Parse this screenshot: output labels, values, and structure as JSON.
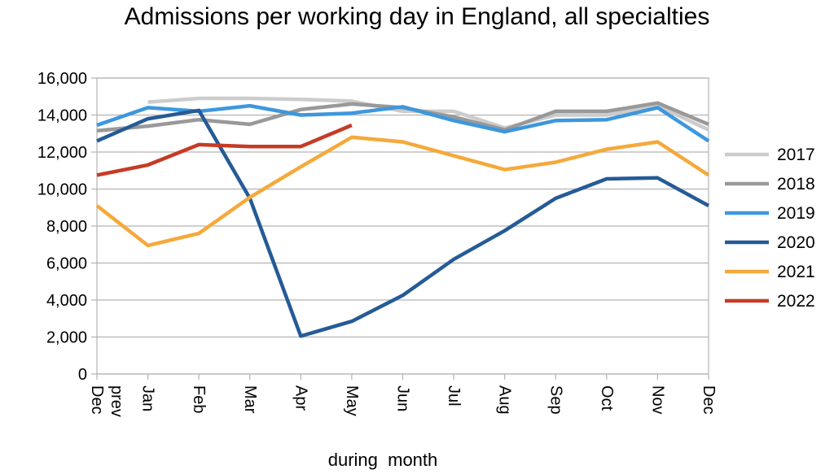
{
  "chart_data": {
    "type": "line",
    "title": "Admissions per working day in England, all specialties",
    "xlabel": "during  month",
    "ylabel": "",
    "ylim": [
      0,
      16000
    ],
    "yticks": [
      0,
      2000,
      4000,
      6000,
      8000,
      10000,
      12000,
      14000,
      16000
    ],
    "ytick_labels": [
      "0",
      "2,000",
      "4,000",
      "6,000",
      "8,000",
      "10,000",
      "12,000",
      "14,000",
      "16,000"
    ],
    "categories": [
      "Dec prev",
      "Jan",
      "Feb",
      "Mar",
      "Apr",
      "May",
      "Jun",
      "Jul",
      "Aug",
      "Sep",
      "Oct",
      "Nov",
      "Dec"
    ],
    "grid": true,
    "legend_position": "right",
    "series": [
      {
        "name": "2017",
        "color": "#cccccc",
        "values": [
          null,
          14700,
          14900,
          14900,
          14850,
          14750,
          14200,
          14200,
          13300,
          14000,
          14000,
          14500,
          13200
        ]
      },
      {
        "name": "2018",
        "color": "#999999",
        "values": [
          13150,
          13400,
          13750,
          13500,
          14300,
          14600,
          14400,
          13900,
          13200,
          14200,
          14200,
          14650,
          13500
        ]
      },
      {
        "name": "2019",
        "color": "#3d97dd",
        "values": [
          13450,
          14400,
          14200,
          14500,
          14000,
          14100,
          14450,
          13700,
          13100,
          13700,
          13750,
          14400,
          12600
        ]
      },
      {
        "name": "2020",
        "color": "#255b96",
        "values": [
          12600,
          13800,
          14250,
          9500,
          2050,
          2850,
          4250,
          6200,
          7750,
          9500,
          10550,
          10600,
          9100
        ]
      },
      {
        "name": "2021",
        "color": "#f5a93b",
        "values": [
          9100,
          6950,
          7600,
          9550,
          11200,
          12800,
          12550,
          11800,
          11050,
          11450,
          12150,
          12550,
          10750
        ]
      },
      {
        "name": "2022",
        "color": "#c63b26",
        "values": [
          10750,
          11300,
          12400,
          12300,
          12300,
          13450,
          null,
          null,
          null,
          null,
          null,
          null,
          null
        ]
      }
    ]
  }
}
